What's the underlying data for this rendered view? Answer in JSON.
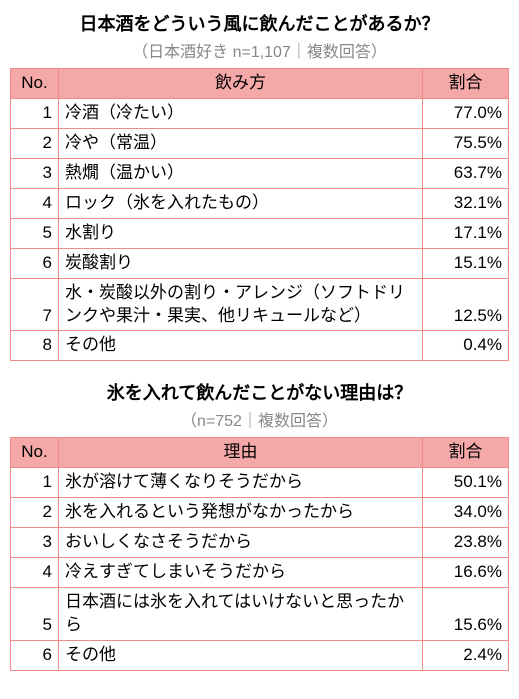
{
  "tables": [
    {
      "title": "日本酒をどういう風に飲んだことがあるか？",
      "subtitle": "（日本酒好き n=1,107｜複数回答）",
      "headers": {
        "no": "No.",
        "label": "飲み方",
        "pct": "割合"
      },
      "rows": [
        {
          "no": "1",
          "label": "冷酒（冷たい）",
          "pct": "77.0%"
        },
        {
          "no": "2",
          "label": "冷や（常温）",
          "pct": "75.5%"
        },
        {
          "no": "3",
          "label": "熱燗（温かい）",
          "pct": "63.7%"
        },
        {
          "no": "4",
          "label": "ロック（氷を入れたもの）",
          "pct": "32.1%"
        },
        {
          "no": "5",
          "label": "水割り",
          "pct": "17.1%"
        },
        {
          "no": "6",
          "label": "炭酸割り",
          "pct": "15.1%"
        },
        {
          "no": "7",
          "label": "水・炭酸以外の割り・アレンジ（ソフトドリンクや果汁・果実、他リキュールなど）",
          "pct": "12.5%"
        },
        {
          "no": "8",
          "label": "その他",
          "pct": "0.4%"
        }
      ]
    },
    {
      "title": "氷を入れて飲んだことがない理由は？",
      "subtitle": "（n=752｜複数回答）",
      "headers": {
        "no": "No.",
        "label": "理由",
        "pct": "割合"
      },
      "rows": [
        {
          "no": "1",
          "label": "氷が溶けて薄くなりそうだから",
          "pct": "50.1%"
        },
        {
          "no": "2",
          "label": "氷を入れるという発想がなかったから",
          "pct": "34.0%"
        },
        {
          "no": "3",
          "label": "おいしくなさそうだから",
          "pct": "23.8%"
        },
        {
          "no": "4",
          "label": "冷えすぎてしまいそうだから",
          "pct": "16.6%"
        },
        {
          "no": "5",
          "label": "日本酒には氷を入れてはいけないと思ったから",
          "pct": "15.6%"
        },
        {
          "no": "6",
          "label": "その他",
          "pct": "2.4%"
        }
      ]
    }
  ]
}
